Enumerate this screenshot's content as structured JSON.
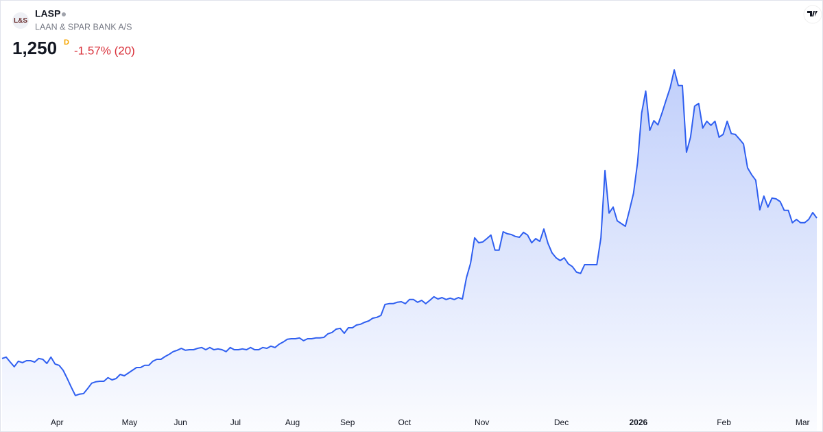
{
  "header": {
    "logo": "L&S",
    "symbol": "LASP",
    "name": "LAAN & SPAR BANK A/S",
    "price": "1,250",
    "interval": "D",
    "change": "-1.57% (20)"
  },
  "chart_data": {
    "type": "area",
    "color": "#2f5ff0",
    "ylim": [
      545,
      1895
    ],
    "xticks": [
      {
        "value": 13.5,
        "label": "Apr"
      },
      {
        "value": 31.3,
        "label": "May"
      },
      {
        "value": 43.8,
        "label": "Jun"
      },
      {
        "value": 57.3,
        "label": "Jul"
      },
      {
        "value": 71.3,
        "label": "Aug"
      },
      {
        "value": 84.8,
        "label": "Sep"
      },
      {
        "value": 98.8,
        "label": "Oct"
      },
      {
        "value": 117.8,
        "label": "Nov"
      },
      {
        "value": 137.3,
        "label": "Dec"
      },
      {
        "value": 156.2,
        "label": "2026"
      },
      {
        "value": 177.2,
        "label": "Feb"
      },
      {
        "value": 196.5,
        "label": "Mar"
      }
    ],
    "values": [
      738,
      743,
      725,
      708,
      728,
      723,
      730,
      730,
      725,
      738,
      735,
      720,
      743,
      718,
      713,
      695,
      665,
      633,
      603,
      608,
      610,
      628,
      648,
      653,
      655,
      655,
      668,
      660,
      665,
      680,
      675,
      685,
      695,
      705,
      705,
      713,
      713,
      728,
      735,
      735,
      745,
      753,
      763,
      768,
      775,
      768,
      770,
      770,
      775,
      778,
      770,
      778,
      770,
      773,
      770,
      763,
      778,
      770,
      770,
      773,
      770,
      778,
      770,
      770,
      778,
      775,
      783,
      778,
      790,
      798,
      808,
      810,
      810,
      813,
      803,
      810,
      810,
      813,
      813,
      815,
      828,
      833,
      845,
      848,
      830,
      850,
      850,
      860,
      863,
      870,
      875,
      885,
      888,
      895,
      935,
      938,
      938,
      943,
      945,
      938,
      953,
      953,
      943,
      950,
      938,
      950,
      963,
      955,
      960,
      953,
      958,
      953,
      960,
      955,
      1033,
      1085,
      1178,
      1160,
      1163,
      1175,
      1188,
      1133,
      1133,
      1200,
      1193,
      1190,
      1183,
      1180,
      1198,
      1188,
      1160,
      1175,
      1165,
      1210,
      1158,
      1123,
      1105,
      1095,
      1105,
      1083,
      1073,
      1053,
      1048,
      1080,
      1080,
      1080,
      1080,
      1178,
      1423,
      1268,
      1290,
      1240,
      1230,
      1220,
      1278,
      1340,
      1453,
      1633,
      1713,
      1570,
      1605,
      1590,
      1633,
      1680,
      1725,
      1790,
      1733,
      1733,
      1490,
      1545,
      1658,
      1668,
      1578,
      1603,
      1588,
      1603,
      1545,
      1555,
      1603,
      1558,
      1555,
      1538,
      1520,
      1433,
      1408,
      1388,
      1280,
      1330,
      1290,
      1323,
      1320,
      1310,
      1278,
      1278,
      1233,
      1245,
      1233,
      1233,
      1245,
      1270,
      1250
    ]
  }
}
